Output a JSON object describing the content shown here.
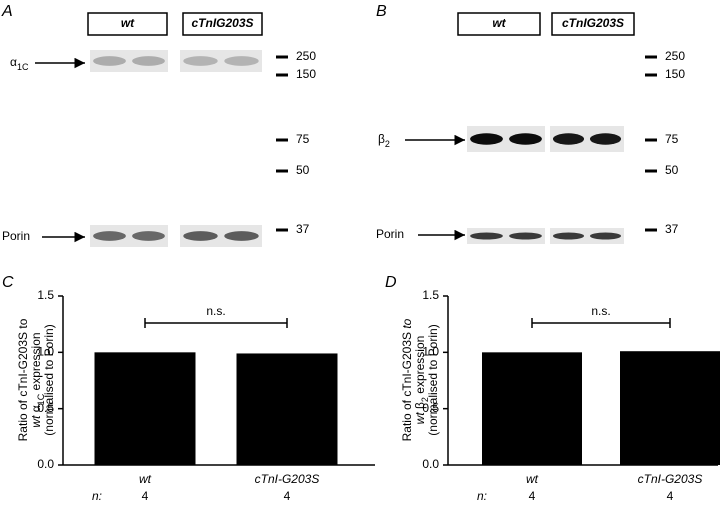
{
  "blots": [
    {
      "panel_label": "A",
      "groups": [
        "wt",
        "cTnIG203S"
      ],
      "target": [
        {
          "text": "α"
        },
        {
          "text": "1C",
          "sub": true
        }
      ],
      "loading": "Porin",
      "markers": [
        "250",
        "150",
        "75",
        "50",
        "37"
      ]
    },
    {
      "panel_label": "B",
      "groups": [
        "wt",
        "cTnIG203S"
      ],
      "target": [
        {
          "text": "β"
        },
        {
          "text": "2",
          "sub": true
        }
      ],
      "loading": "Porin",
      "markers": [
        "250",
        "150",
        "75",
        "50",
        "37"
      ]
    }
  ],
  "chart_data": [
    {
      "type": "bar",
      "panel_label": "C",
      "y_label": [
        [
          {
            "text": "Ratio of cTnI-G203S to"
          }
        ],
        [
          {
            "text": "wt",
            "italic": true
          },
          {
            "text": " α"
          },
          {
            "text": "1C",
            "sub": true
          },
          {
            "text": " expression"
          }
        ],
        [
          {
            "text": "(normalised to Porin)"
          }
        ]
      ],
      "categories": [
        "wt",
        "cTnI-G203S"
      ],
      "values": [
        1.0,
        0.99
      ],
      "color": "#000000",
      "ylim": [
        0,
        1.5
      ],
      "yticks": [
        {
          "value": 0,
          "label": "0.0"
        },
        {
          "value": 0.5,
          "label": "0.5"
        },
        {
          "value": 1,
          "label": "1.0"
        },
        {
          "value": 1.5,
          "label": "1.5"
        }
      ],
      "annotation": "n.s.",
      "n_label": "n:",
      "n_values": [
        4,
        4
      ]
    },
    {
      "type": "bar",
      "panel_label": "D",
      "y_label": [
        [
          {
            "text": "Ratio of cTnI-G203S "
          },
          {
            "text": "to",
            "italic": true
          }
        ],
        [
          {
            "text": "wt",
            "italic": true
          },
          {
            "text": " β"
          },
          {
            "text": "2",
            "sub": true
          },
          {
            "text": " expression"
          }
        ],
        [
          {
            "text": "(normalised to Porin)"
          }
        ]
      ],
      "categories": [
        "wt",
        "cTnI-G203S"
      ],
      "values": [
        1.0,
        1.01
      ],
      "color": "#000000",
      "ylim": [
        0,
        1.5
      ],
      "yticks": [
        {
          "value": 0,
          "label": "0.0"
        },
        {
          "value": 0.5,
          "label": "0.5"
        },
        {
          "value": 1,
          "label": "1.0"
        },
        {
          "value": 1.5,
          "label": "1.5"
        }
      ],
      "annotation": "n.s.",
      "n_label": "n:",
      "n_values": [
        4,
        4
      ]
    }
  ]
}
